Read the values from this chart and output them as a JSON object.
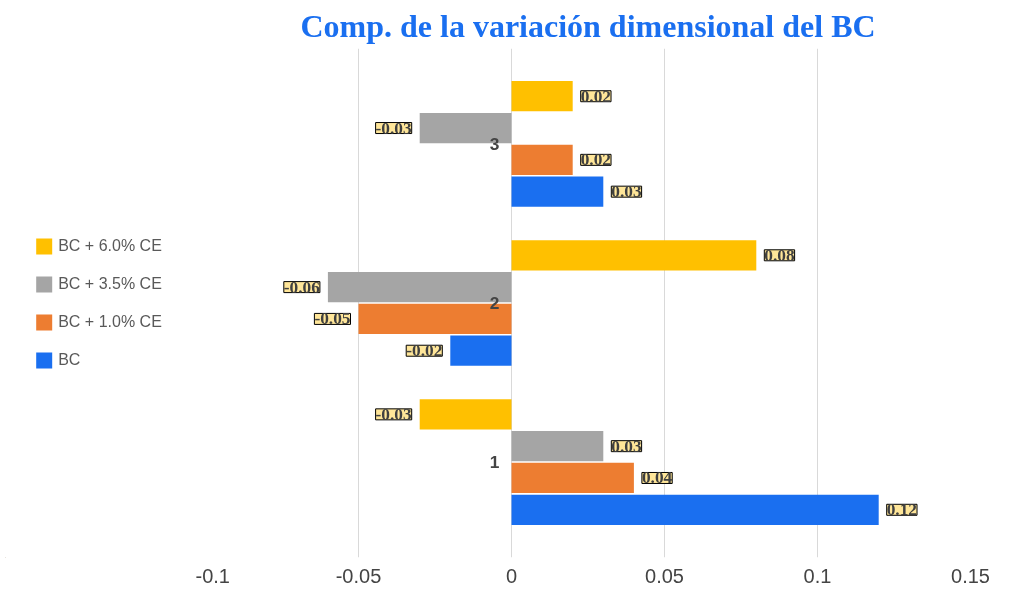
{
  "chart_data": {
    "type": "bar",
    "orientation": "horizontal",
    "title": "Comp. de la variación dimensional del BC",
    "categories": [
      "3",
      "2",
      "1"
    ],
    "series": [
      {
        "name": "BC",
        "color": "#1a6ff0",
        "values": [
          0.03,
          -0.02,
          0.12
        ]
      },
      {
        "name": "BC + 1.0% CE",
        "color": "#ed7d31",
        "values": [
          0.02,
          -0.05,
          0.04
        ]
      },
      {
        "name": "BC + 3.5% CE",
        "color": "#a5a5a5",
        "values": [
          -0.03,
          -0.06,
          0.03
        ]
      },
      {
        "name": "BC + 6.0% CE",
        "color": "#ffc000",
        "values": [
          0.02,
          0.08,
          -0.03
        ]
      }
    ],
    "xlim": [
      -0.1,
      0.15
    ],
    "xticks": [
      -0.1,
      -0.05,
      0,
      0.05,
      0.1,
      0.15
    ],
    "grid": "x",
    "legend": "left",
    "data_labels": true
  }
}
